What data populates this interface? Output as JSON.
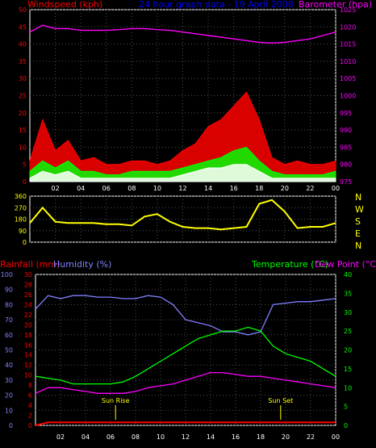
{
  "chart_data": [
    {
      "type": "line",
      "title": "24 hour graph data - 19 April 2008",
      "ylabel_left": "Windspeed (kph)",
      "ylabel_right": "Barometer (hpa)",
      "x_ticks": [
        "02",
        "04",
        "06",
        "08",
        "10",
        "12",
        "14",
        "16",
        "18",
        "20",
        "22",
        "00"
      ],
      "yticks_left": [
        "0",
        "5",
        "10",
        "15",
        "20",
        "25",
        "30",
        "35",
        "40",
        "45",
        "50"
      ],
      "ylim_left": [
        0,
        50
      ],
      "yticks_right": [
        "975",
        "980",
        "985",
        "990",
        "995",
        "1000",
        "1005",
        "1010",
        "1015",
        "1020",
        "1025"
      ],
      "ylim_right": [
        975,
        1025
      ],
      "grid": true,
      "colors": {
        "gust": "#ff0000",
        "speed": "#00ff00",
        "avg": "#ffffff",
        "barometer": "#ff00ff",
        "axis_left": "#ff0000",
        "axis_right": "#ff00ff",
        "title": "#0000ff"
      },
      "series": [
        {
          "name": "",
          "color": "#ff00ff",
          "axis": "right",
          "x": [
            0,
            1,
            2,
            3,
            4,
            5,
            6,
            7,
            8,
            9,
            10,
            11,
            12,
            13,
            14,
            15,
            16,
            17,
            18,
            19,
            20,
            21,
            22,
            23,
            24
          ],
          "values": [
            1018.5,
            1020.5,
            1019.5,
            1019.5,
            1019,
            1019,
            1019,
            1019.2,
            1019.5,
            1019.5,
            1019.2,
            1019,
            1018.5,
            1018,
            1017.5,
            1017,
            1016.5,
            1016,
            1015.5,
            1015.3,
            1015.5,
            1016,
            1016.5,
            1017.5,
            1018.5
          ]
        },
        {
          "name": "",
          "color": "#ff0000",
          "axis": "left",
          "x": [
            0,
            1,
            2,
            3,
            4,
            5,
            6,
            7,
            8,
            9,
            10,
            11,
            12,
            13,
            14,
            15,
            16,
            17,
            18,
            19,
            20,
            21,
            22,
            23,
            24
          ],
          "values": [
            6,
            18,
            9,
            12,
            6,
            7,
            5,
            5,
            6,
            6,
            5,
            6,
            9,
            11,
            16,
            18,
            22,
            26,
            18,
            7,
            5,
            6,
            5,
            5,
            6
          ]
        },
        {
          "name": "",
          "color": "#00ff00",
          "axis": "left",
          "x": [
            0,
            1,
            2,
            3,
            4,
            5,
            6,
            7,
            8,
            9,
            10,
            11,
            12,
            13,
            14,
            15,
            16,
            17,
            18,
            19,
            20,
            21,
            22,
            23,
            24
          ],
          "values": [
            3,
            6,
            4,
            6,
            3,
            3,
            2,
            2,
            3,
            3,
            3,
            3,
            4,
            5,
            6,
            7,
            9,
            10,
            6,
            3,
            2,
            2,
            2,
            2,
            3
          ]
        },
        {
          "name": "",
          "color": "#ffffff",
          "axis": "left",
          "x": [
            0,
            1,
            2,
            3,
            4,
            5,
            6,
            7,
            8,
            9,
            10,
            11,
            12,
            13,
            14,
            15,
            16,
            17,
            18,
            19,
            20,
            21,
            22,
            23,
            24
          ],
          "values": [
            1,
            3,
            2,
            3,
            1,
            1,
            1,
            1,
            1,
            1,
            1,
            1,
            2,
            3,
            4,
            4,
            5,
            5,
            3,
            1,
            1,
            1,
            1,
            1,
            1
          ]
        }
      ]
    },
    {
      "type": "line",
      "yticks": [
        "0",
        "90",
        "180",
        "270",
        "360"
      ],
      "ylim": [
        0,
        360
      ],
      "compass": [
        "N",
        "W",
        "S",
        "E",
        "N"
      ],
      "colors": {
        "direction": "#ffff00",
        "axis": "#ffff00"
      },
      "series": [
        {
          "name": "",
          "color": "#ffff00",
          "x": [
            0,
            1,
            2,
            3,
            4,
            5,
            6,
            7,
            8,
            9,
            10,
            11,
            12,
            13,
            14,
            15,
            16,
            17,
            18,
            19,
            20,
            21,
            22,
            23,
            24
          ],
          "values": [
            150,
            270,
            160,
            150,
            150,
            150,
            140,
            140,
            130,
            200,
            220,
            160,
            120,
            110,
            110,
            100,
            110,
            120,
            300,
            330,
            240,
            110,
            120,
            120,
            150
          ]
        }
      ]
    },
    {
      "type": "line",
      "ylabel_left_1": "Rainfall (mm)",
      "ylabel_left_2": "Humidity (%)",
      "ylabel_right_1": "Temperature (°C)",
      "ylabel_right_2": "Dew Point (°C)",
      "yticks_humidity": [
        "0",
        "10",
        "20",
        "30",
        "40",
        "50",
        "60",
        "70",
        "80",
        "90",
        "100"
      ],
      "ylim_humidity": [
        0,
        100
      ],
      "yticks_rain": [
        "0",
        "2",
        "4",
        "6",
        "8",
        "10",
        "12",
        "14",
        "16",
        "18",
        "20",
        "22",
        "24",
        "26",
        "28",
        "30"
      ],
      "ylim_rain": [
        0,
        30
      ],
      "yticks_temp": [
        "0",
        "5",
        "10",
        "15",
        "20",
        "25",
        "30",
        "35",
        "40"
      ],
      "ylim_temp": [
        0,
        40
      ],
      "annotations": [
        {
          "text": "Sun Rise",
          "x": 6.4
        },
        {
          "text": "Sun Set",
          "x": 19.6
        }
      ],
      "colors": {
        "humidity": "#8080ff",
        "temperature": "#00ff00",
        "dewpoint": "#ff00ff",
        "rain": "#ff0000",
        "sun": "#ffff00"
      },
      "series": [
        {
          "name": "",
          "color": "#8080ff",
          "axis": "humidity",
          "x": [
            0,
            1,
            2,
            3,
            4,
            5,
            6,
            7,
            8,
            9,
            10,
            11,
            12,
            13,
            14,
            15,
            16,
            17,
            18,
            19,
            20,
            21,
            22,
            23,
            24
          ],
          "values": [
            77,
            86,
            84,
            86,
            86,
            85,
            85,
            84,
            84,
            86,
            85,
            80,
            70,
            68,
            66,
            62,
            62,
            60,
            62,
            80,
            81,
            82,
            82,
            83,
            84
          ]
        },
        {
          "name": "",
          "color": "#00ff00",
          "axis": "temp",
          "x": [
            0,
            1,
            2,
            3,
            4,
            5,
            6,
            7,
            8,
            9,
            10,
            11,
            12,
            13,
            14,
            15,
            16,
            17,
            18,
            19,
            20,
            21,
            22,
            23,
            24
          ],
          "values": [
            13,
            12.5,
            12,
            11,
            11,
            11,
            11,
            11.5,
            13,
            15,
            17,
            19,
            21,
            23,
            24,
            25,
            25,
            26,
            25,
            21,
            19,
            18,
            17,
            15,
            13
          ]
        },
        {
          "name": "",
          "color": "#ff00ff",
          "axis": "temp",
          "x": [
            0,
            1,
            2,
            3,
            4,
            5,
            6,
            7,
            8,
            9,
            10,
            11,
            12,
            13,
            14,
            15,
            16,
            17,
            18,
            19,
            20,
            21,
            22,
            23,
            24
          ],
          "values": [
            8.5,
            10,
            10,
            9.5,
            9,
            8.5,
            8.5,
            8.5,
            9,
            10,
            10.5,
            11,
            12,
            13,
            14,
            14,
            13.5,
            13,
            13,
            12.5,
            12,
            11.5,
            11,
            10.5,
            10
          ]
        },
        {
          "name": "",
          "color": "#ff0000",
          "axis": "rain",
          "x": [
            0,
            1,
            2,
            3,
            4,
            5,
            6,
            7,
            8,
            9,
            10,
            11,
            12,
            13,
            14,
            15,
            16,
            17,
            18,
            19,
            20,
            21,
            22,
            23,
            24
          ],
          "values": [
            0,
            0.6,
            0.6,
            0.6,
            0.6,
            0.6,
            0.6,
            0.6,
            0.6,
            0.6,
            0.6,
            0.6,
            0.6,
            0.6,
            0.6,
            0.6,
            0.6,
            0.6,
            0.6,
            0.6,
            0.6,
            0.6,
            0.6,
            0.6,
            0.6
          ]
        }
      ]
    }
  ]
}
